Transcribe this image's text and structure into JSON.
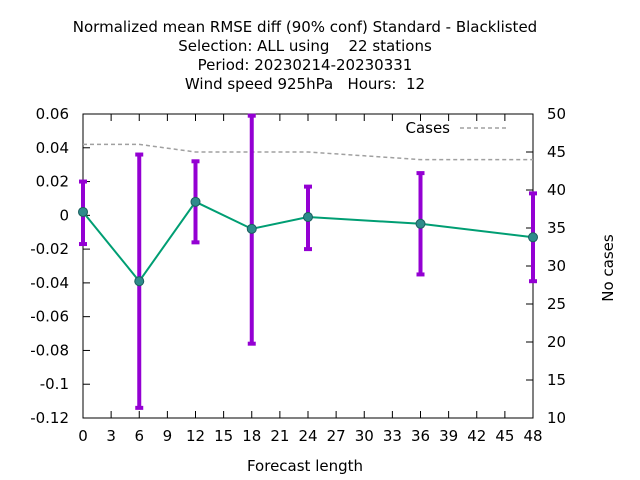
{
  "chart_data": {
    "type": "line",
    "title_lines": [
      "Normalized mean RMSE diff (90% conf) Standard - Blacklisted",
      "Selection: ALL using    22 stations",
      "Period: 20230214-20230331",
      "Wind speed 925hPa   Hours:  12"
    ],
    "xlabel": "Forecast length",
    "ylabel": "",
    "y2label": "No cases",
    "xlim": [
      0,
      48
    ],
    "ylim": [
      -0.12,
      0.06
    ],
    "y2lim": [
      10,
      50
    ],
    "xticks": [
      0,
      3,
      6,
      9,
      12,
      15,
      18,
      21,
      24,
      27,
      30,
      33,
      36,
      39,
      42,
      45,
      48
    ],
    "yticks": [
      -0.12,
      -0.1,
      -0.08,
      -0.06,
      -0.04,
      -0.02,
      0,
      0.02,
      0.04,
      0.06
    ],
    "ytick_labels": [
      "-0.12",
      "-0.1",
      "-0.08",
      "-0.06",
      "-0.04",
      "-0.02",
      "0",
      "0.02",
      "0.04",
      "0.06"
    ],
    "y2ticks": [
      10,
      15,
      20,
      25,
      30,
      35,
      40,
      45,
      50
    ],
    "grid": false,
    "legend": {
      "placement": "top-right",
      "entries": [
        "Cases"
      ]
    },
    "series": [
      {
        "kind": "line-errorbars",
        "x": [
          0,
          6,
          12,
          18,
          24,
          36,
          48
        ],
        "y": [
          0.002,
          -0.039,
          0.008,
          -0.008,
          -0.001,
          -0.005,
          -0.013
        ],
        "err_low": [
          -0.017,
          -0.114,
          -0.016,
          -0.076,
          -0.02,
          -0.035,
          -0.039
        ],
        "err_high": [
          0.02,
          0.036,
          0.032,
          0.059,
          0.017,
          0.025,
          0.013
        ],
        "line_color": "#009E73",
        "errorbar_color": "#9400D3",
        "marker_color": "#2E8B8B"
      },
      {
        "name": "Cases",
        "axis": "y2",
        "kind": "dashed-line",
        "x": [
          0,
          6,
          12,
          18,
          24,
          30,
          36,
          42,
          48
        ],
        "y": [
          46,
          46,
          45,
          45,
          45,
          44.5,
          44,
          44,
          44
        ],
        "color": "#a0a0a0"
      }
    ]
  }
}
